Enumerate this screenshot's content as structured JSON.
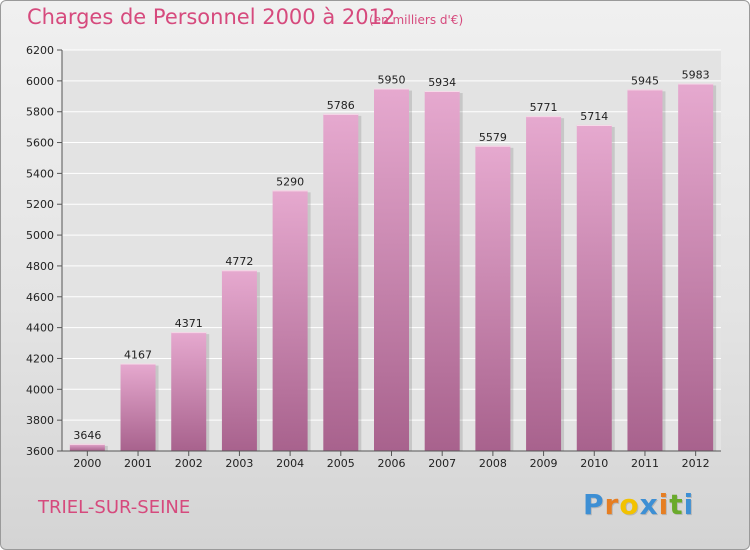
{
  "header": {
    "title": "Charges de Personnel 2000 à 2012",
    "subtitle": "(en milliers d'€)"
  },
  "footer": {
    "commune": "TRIEL-SUR-SEINE",
    "brand_letters": [
      "P",
      "r",
      "o",
      "x",
      "i",
      "t",
      "i"
    ],
    "brand_colors": [
      "#3d8fd4",
      "#e67e22",
      "#f2c200",
      "#3d8fd4",
      "#e67e22",
      "#6aaa2c",
      "#3d8fd4"
    ]
  },
  "colors": {
    "accent": "#d64a7d",
    "bar_top": "#e6a9cf",
    "bar_bottom": "#a8628d",
    "grid": "#ffffff"
  },
  "chart_data": {
    "type": "bar",
    "title": "Charges de Personnel 2000 à 2012",
    "subtitle": "(en milliers d'€)",
    "categories": [
      "2000",
      "2001",
      "2002",
      "2003",
      "2004",
      "2005",
      "2006",
      "2007",
      "2008",
      "2009",
      "2010",
      "2011",
      "2012"
    ],
    "values": [
      3646,
      4167,
      4371,
      4772,
      5290,
      5786,
      5950,
      5934,
      5579,
      5771,
      5714,
      5945,
      5983
    ],
    "yticks": [
      3600,
      3800,
      4000,
      4200,
      4400,
      4600,
      4800,
      5000,
      5200,
      5400,
      5600,
      5800,
      6000,
      6200
    ],
    "ylim": [
      3600,
      6200
    ],
    "grid": true,
    "xlabel": "",
    "ylabel": ""
  }
}
